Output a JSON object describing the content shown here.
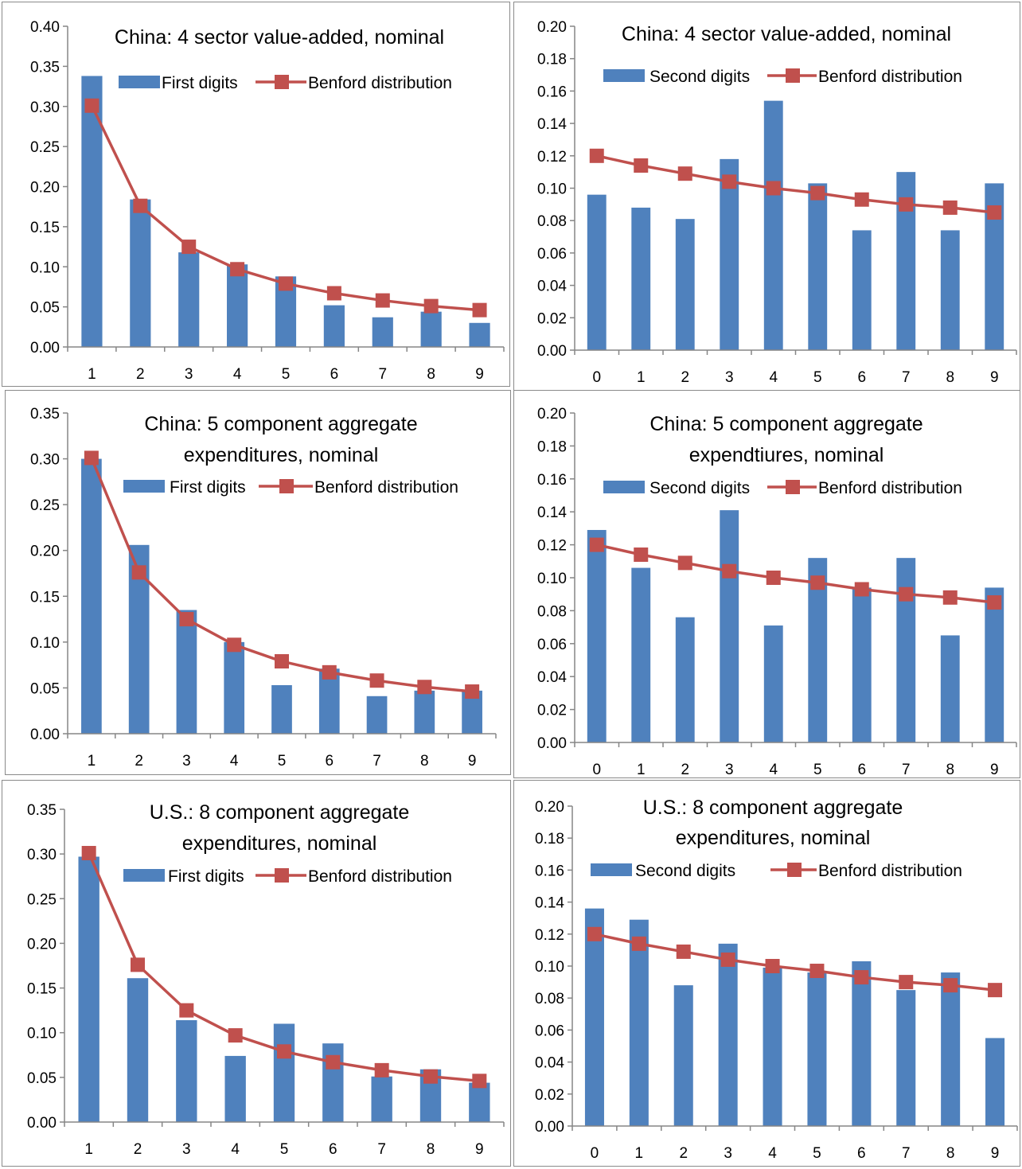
{
  "chart_data": [
    {
      "type": "bar",
      "title": [
        "China: 4 sector value-added, nominal"
      ],
      "categories": [
        "1",
        "2",
        "3",
        "4",
        "5",
        "6",
        "7",
        "8",
        "9"
      ],
      "ylim": [
        0,
        0.4
      ],
      "yticks": [
        "0.00",
        "0.05",
        "0.10",
        "0.15",
        "0.20",
        "0.25",
        "0.30",
        "0.35",
        "0.40"
      ],
      "series": [
        {
          "name": "First digits",
          "kind": "bar",
          "color": "#4f81bd",
          "values": [
            0.338,
            0.184,
            0.118,
            0.103,
            0.088,
            0.052,
            0.037,
            0.044,
            0.03
          ]
        },
        {
          "name": "Benford distribution",
          "kind": "line",
          "color": "#c0504d",
          "values": [
            0.301,
            0.176,
            0.125,
            0.097,
            0.079,
            0.067,
            0.058,
            0.051,
            0.046
          ]
        }
      ],
      "legend": "top-right",
      "grid": false
    },
    {
      "type": "bar",
      "title": [
        "China: 4 sector value-added, nominal"
      ],
      "categories": [
        "0",
        "1",
        "2",
        "3",
        "4",
        "5",
        "6",
        "7",
        "8",
        "9"
      ],
      "ylim": [
        0,
        0.2
      ],
      "yticks": [
        "0.00",
        "0.02",
        "0.04",
        "0.06",
        "0.08",
        "0.10",
        "0.12",
        "0.14",
        "0.16",
        "0.18",
        "0.20"
      ],
      "series": [
        {
          "name": "Second digits",
          "kind": "bar",
          "color": "#4f81bd",
          "values": [
            0.096,
            0.088,
            0.081,
            0.118,
            0.154,
            0.103,
            0.074,
            0.11,
            0.074,
            0.103
          ]
        },
        {
          "name": "Benford distribution",
          "kind": "line",
          "color": "#c0504d",
          "values": [
            0.12,
            0.114,
            0.109,
            0.104,
            0.1,
            0.097,
            0.093,
            0.09,
            0.088,
            0.085
          ]
        }
      ],
      "legend": "top",
      "grid": false
    },
    {
      "type": "bar",
      "title": [
        "China: 5 component aggregate",
        "expenditures, nominal"
      ],
      "categories": [
        "1",
        "2",
        "3",
        "4",
        "5",
        "6",
        "7",
        "8",
        "9"
      ],
      "ylim": [
        0,
        0.35
      ],
      "yticks": [
        "0.00",
        "0.05",
        "0.10",
        "0.15",
        "0.20",
        "0.25",
        "0.30",
        "0.35"
      ],
      "series": [
        {
          "name": "First digits",
          "kind": "bar",
          "color": "#4f81bd",
          "values": [
            0.3,
            0.206,
            0.135,
            0.1,
            0.053,
            0.071,
            0.041,
            0.047,
            0.047
          ]
        },
        {
          "name": "Benford distribution",
          "kind": "line",
          "color": "#c0504d",
          "values": [
            0.301,
            0.176,
            0.125,
            0.097,
            0.079,
            0.067,
            0.058,
            0.051,
            0.046
          ]
        }
      ],
      "legend": "top-right",
      "grid": false
    },
    {
      "type": "bar",
      "title": [
        "China: 5 component aggregate",
        "expendtiures, nominal"
      ],
      "categories": [
        "0",
        "1",
        "2",
        "3",
        "4",
        "5",
        "6",
        "7",
        "8",
        "9"
      ],
      "ylim": [
        0,
        0.2
      ],
      "yticks": [
        "0.00",
        "0.02",
        "0.04",
        "0.06",
        "0.08",
        "0.10",
        "0.12",
        "0.14",
        "0.16",
        "0.18",
        "0.20"
      ],
      "series": [
        {
          "name": "Second digits",
          "kind": "bar",
          "color": "#4f81bd",
          "values": [
            0.129,
            0.106,
            0.076,
            0.141,
            0.071,
            0.112,
            0.094,
            0.112,
            0.065,
            0.094
          ]
        },
        {
          "name": "Benford distribution",
          "kind": "line",
          "color": "#c0504d",
          "values": [
            0.12,
            0.114,
            0.109,
            0.104,
            0.1,
            0.097,
            0.093,
            0.09,
            0.088,
            0.085
          ]
        }
      ],
      "legend": "top",
      "grid": false
    },
    {
      "type": "bar",
      "title": [
        "U.S.: 8 component aggregate",
        "expenditures, nominal"
      ],
      "categories": [
        "1",
        "2",
        "3",
        "4",
        "5",
        "6",
        "7",
        "8",
        "9"
      ],
      "ylim": [
        0,
        0.35
      ],
      "yticks": [
        "0.00",
        "0.05",
        "0.10",
        "0.15",
        "0.20",
        "0.25",
        "0.30",
        "0.35"
      ],
      "series": [
        {
          "name": "First digits",
          "kind": "bar",
          "color": "#4f81bd",
          "values": [
            0.297,
            0.161,
            0.114,
            0.074,
            0.11,
            0.088,
            0.051,
            0.059,
            0.044
          ]
        },
        {
          "name": "Benford distribution",
          "kind": "line",
          "color": "#c0504d",
          "values": [
            0.301,
            0.176,
            0.125,
            0.097,
            0.079,
            0.067,
            0.058,
            0.051,
            0.046
          ]
        }
      ],
      "legend": "top-right",
      "grid": false
    },
    {
      "type": "bar",
      "title": [
        "U.S.: 8 component aggregate",
        "expenditures, nominal"
      ],
      "categories": [
        "0",
        "1",
        "2",
        "3",
        "4",
        "5",
        "6",
        "7",
        "8",
        "9"
      ],
      "ylim": [
        0,
        0.2
      ],
      "yticks": [
        "0.00",
        "0.02",
        "0.04",
        "0.06",
        "0.08",
        "0.10",
        "0.12",
        "0.14",
        "0.16",
        "0.18",
        "0.20"
      ],
      "series": [
        {
          "name": "Second digits",
          "kind": "bar",
          "color": "#4f81bd",
          "values": [
            0.136,
            0.129,
            0.088,
            0.114,
            0.099,
            0.096,
            0.103,
            0.085,
            0.096,
            0.055
          ]
        },
        {
          "name": "Benford distribution",
          "kind": "line",
          "color": "#c0504d",
          "values": [
            0.12,
            0.114,
            0.109,
            0.104,
            0.1,
            0.097,
            0.093,
            0.09,
            0.088,
            0.085
          ]
        }
      ],
      "legend": "top",
      "grid": false
    }
  ]
}
